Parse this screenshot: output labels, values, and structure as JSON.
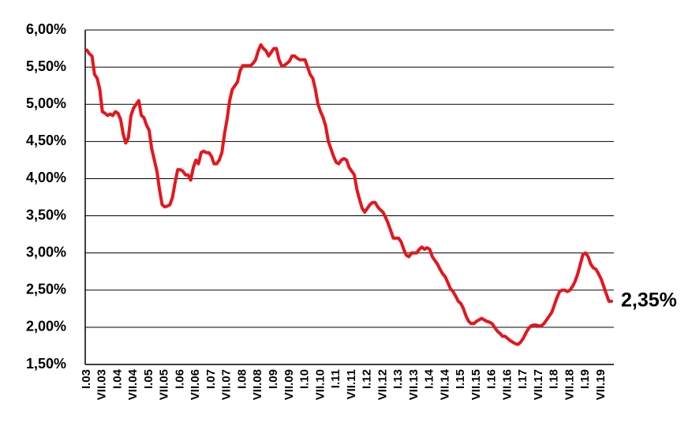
{
  "chart_data": {
    "type": "line",
    "categories": [
      "I.03",
      null,
      null,
      null,
      null,
      null,
      "VII.03",
      null,
      null,
      null,
      null,
      null,
      "I.04",
      null,
      null,
      null,
      null,
      null,
      "VII.04",
      null,
      null,
      null,
      null,
      null,
      "I.05",
      null,
      null,
      null,
      null,
      null,
      "VII.05",
      null,
      null,
      null,
      null,
      null,
      "I.06",
      null,
      null,
      null,
      null,
      null,
      "VII.06",
      null,
      null,
      null,
      null,
      null,
      "I.07",
      null,
      null,
      null,
      null,
      null,
      "VII.07",
      null,
      null,
      null,
      null,
      null,
      "I.08",
      null,
      null,
      null,
      null,
      null,
      "VII.08",
      null,
      null,
      null,
      null,
      null,
      "I.09",
      null,
      null,
      null,
      null,
      null,
      "VII.09",
      null,
      null,
      null,
      null,
      null,
      "I.10",
      null,
      null,
      null,
      null,
      null,
      "VII.10",
      null,
      null,
      null,
      null,
      null,
      "I.11",
      null,
      null,
      null,
      null,
      null,
      "VII.11",
      null,
      null,
      null,
      null,
      null,
      "I.12",
      null,
      null,
      null,
      null,
      null,
      "VII.12",
      null,
      null,
      null,
      null,
      null,
      "I.13",
      null,
      null,
      null,
      null,
      null,
      "VII.13",
      null,
      null,
      null,
      null,
      null,
      "I.14",
      null,
      null,
      null,
      null,
      null,
      "VII.14",
      null,
      null,
      null,
      null,
      null,
      "I.15",
      null,
      null,
      null,
      null,
      null,
      "VII.15",
      null,
      null,
      null,
      null,
      null,
      "I.16",
      null,
      null,
      null,
      null,
      null,
      "VII.16",
      null,
      null,
      null,
      null,
      null,
      "I.17",
      null,
      null,
      null,
      null,
      null,
      "VII.17",
      null,
      null,
      null,
      null,
      null,
      "I.18",
      null,
      null,
      null,
      null,
      null,
      "VII.18",
      null,
      null,
      null,
      null,
      null,
      "I.19",
      null,
      null,
      null,
      null,
      null,
      "VII.19",
      null,
      null,
      null,
      null
    ],
    "values": [
      5.73,
      5.68,
      5.65,
      5.4,
      5.35,
      5.2,
      4.9,
      4.88,
      4.85,
      4.87,
      4.85,
      4.9,
      4.88,
      4.8,
      4.6,
      4.48,
      4.55,
      4.85,
      4.95,
      5.0,
      5.05,
      4.85,
      4.82,
      4.72,
      4.65,
      4.4,
      4.25,
      4.1,
      3.85,
      3.65,
      3.62,
      3.63,
      3.65,
      3.75,
      3.95,
      4.12,
      4.12,
      4.1,
      4.05,
      4.05,
      3.98,
      4.15,
      4.25,
      4.2,
      4.35,
      4.37,
      4.35,
      4.35,
      4.3,
      4.2,
      4.2,
      4.25,
      4.35,
      4.6,
      4.8,
      5.05,
      5.2,
      5.25,
      5.3,
      5.45,
      5.52,
      5.52,
      5.52,
      5.52,
      5.55,
      5.6,
      5.72,
      5.8,
      5.75,
      5.72,
      5.65,
      5.7,
      5.75,
      5.75,
      5.6,
      5.52,
      5.52,
      5.55,
      5.58,
      5.65,
      5.65,
      5.62,
      5.6,
      5.6,
      5.6,
      5.5,
      5.4,
      5.35,
      5.2,
      5.0,
      4.9,
      4.82,
      4.7,
      4.5,
      4.4,
      4.3,
      4.22,
      4.2,
      4.25,
      4.27,
      4.25,
      4.15,
      4.1,
      4.05,
      3.85,
      3.72,
      3.6,
      3.55,
      3.6,
      3.65,
      3.68,
      3.68,
      3.62,
      3.58,
      3.55,
      3.48,
      3.4,
      3.3,
      3.2,
      3.2,
      3.2,
      3.15,
      3.05,
      2.97,
      2.95,
      3.0,
      3.0,
      3.0,
      3.05,
      3.08,
      3.05,
      3.07,
      3.05,
      2.95,
      2.9,
      2.85,
      2.78,
      2.72,
      2.68,
      2.6,
      2.52,
      2.48,
      2.42,
      2.35,
      2.32,
      2.25,
      2.15,
      2.08,
      2.05,
      2.05,
      2.08,
      2.1,
      2.12,
      2.1,
      2.08,
      2.07,
      2.05,
      2.0,
      1.95,
      1.92,
      1.88,
      1.88,
      1.85,
      1.82,
      1.8,
      1.78,
      1.77,
      1.8,
      1.85,
      1.92,
      1.98,
      2.02,
      2.03,
      2.03,
      2.02,
      2.02,
      2.05,
      2.1,
      2.15,
      2.2,
      2.3,
      2.4,
      2.48,
      2.5,
      2.5,
      2.48,
      2.5,
      2.55,
      2.62,
      2.72,
      2.85,
      2.98,
      3.0,
      2.95,
      2.85,
      2.8,
      2.78,
      2.72,
      2.65,
      2.55,
      2.45,
      2.35,
      2.35
    ],
    "color": "#e8141c",
    "annotation": "2,35%",
    "ylim": [
      1.5,
      6
    ],
    "yticks": [
      {
        "value": 1.5,
        "label": "1,50%"
      },
      {
        "value": 2,
        "label": "2,00%"
      },
      {
        "value": 2.5,
        "label": "2,50%"
      },
      {
        "value": 3,
        "label": "3,00%"
      },
      {
        "value": 3.5,
        "label": "3,50%"
      },
      {
        "value": 4,
        "label": "4,00%"
      },
      {
        "value": 4.5,
        "label": "4,50%"
      },
      {
        "value": 5,
        "label": "5,00%"
      },
      {
        "value": 5.5,
        "label": "5,50%"
      },
      {
        "value": 6,
        "label": "6,00%"
      }
    ],
    "grid": true
  }
}
